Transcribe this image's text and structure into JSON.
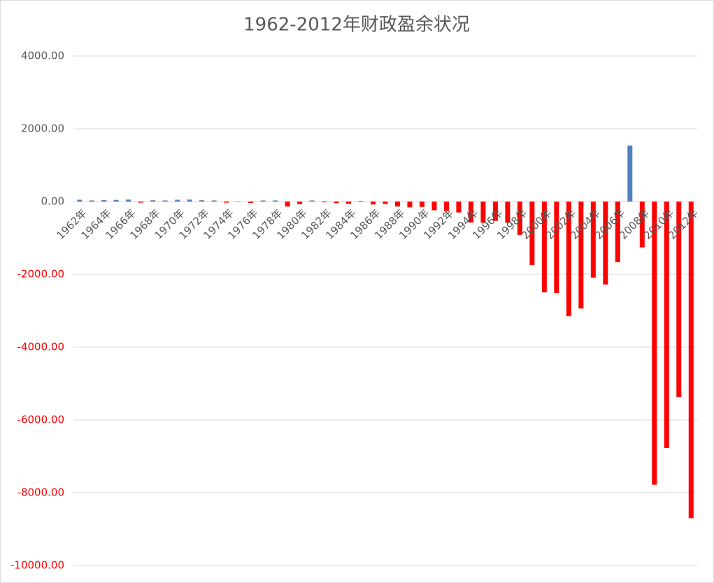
{
  "chart_data": {
    "type": "bar",
    "title": "1962-2012年财政盈余状况",
    "categories": [
      "1962年",
      null,
      "1964年",
      null,
      "1966年",
      null,
      "1968年",
      null,
      "1970年",
      null,
      "1972年",
      null,
      "1974年",
      null,
      "1976年",
      null,
      "1978年",
      null,
      "1980年",
      null,
      "1982年",
      null,
      "1984年",
      null,
      "1986年",
      null,
      "1988年",
      null,
      "1990年",
      null,
      "1992年",
      null,
      "1994年",
      null,
      "1996年",
      null,
      "1998年",
      null,
      "2000年",
      null,
      "2002年",
      null,
      "2004年",
      null,
      "2006年",
      null,
      "2008年",
      null,
      "2010年",
      null,
      "2012年"
    ],
    "values": [
      50,
      30,
      40,
      45,
      55,
      -30,
      35,
      30,
      50,
      55,
      35,
      30,
      -30,
      -10,
      -40,
      30,
      30,
      -135,
      -70,
      30,
      -20,
      -45,
      -60,
      20,
      -80,
      -65,
      -135,
      -160,
      -150,
      -240,
      -260,
      -300,
      -575,
      -580,
      -530,
      -580,
      -920,
      -1745,
      -2490,
      -2515,
      -3150,
      -2935,
      -2090,
      -2280,
      -1660,
      1540,
      -1260,
      -7780,
      -6770,
      -5370,
      -8700
    ],
    "color": "#4f81bd",
    "negative_color": "#ff0000",
    "ylim": [
      -10000,
      4000
    ],
    "yticks": [
      {
        "value": -10000,
        "label": "-10000.00"
      },
      {
        "value": -8000,
        "label": "-8000.00"
      },
      {
        "value": -6000,
        "label": "-6000.00"
      },
      {
        "value": -4000,
        "label": "-4000.00"
      },
      {
        "value": -2000,
        "label": "-2000.00"
      },
      {
        "value": 0,
        "label": "0.00"
      },
      {
        "value": 2000,
        "label": "2000.00"
      },
      {
        "value": 4000,
        "label": "4000.00"
      }
    ],
    "grid": true
  }
}
